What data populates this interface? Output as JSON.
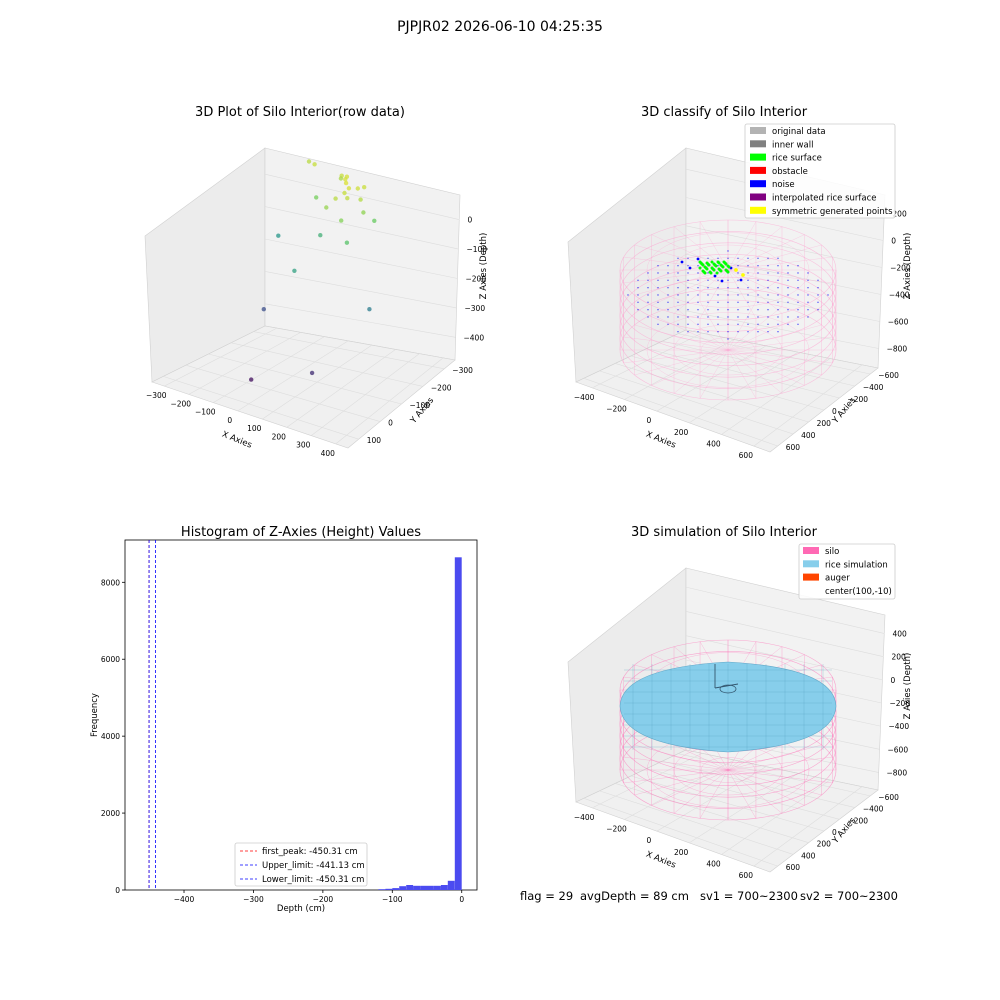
{
  "suptitle": "PJPJR02 2026-06-10 04:25:35",
  "colors": {
    "original_data": "#b3b3b3",
    "inner_wall": "#808080",
    "rice_surface": "#00ff00",
    "obstacle": "#ff0000",
    "noise": "#0000ff",
    "interpolated_rice_surface": "#800080",
    "symmetric_generated_points": "#ffff00",
    "silo": "#ff69b4",
    "rice_simulation": "#87ceeb",
    "auger": "#ff4500",
    "histogram": "#4b4bf0"
  },
  "chart_data": [
    {
      "type": "scatter",
      "projection": "3d",
      "title": "3D Plot of Silo Interior(row data)",
      "xlabel": "X Axies",
      "ylabel": "Y Axies",
      "zlabel": "Z Axies (Depth)",
      "xticks": [
        "−300",
        "−200",
        "−100",
        "0",
        "100",
        "200",
        "300",
        "400"
      ],
      "yticks": [
        "100",
        "0",
        "−100",
        "−200",
        "−300"
      ],
      "zticks": [
        "0",
        "−100",
        "−200",
        "−300",
        "−400"
      ],
      "xlim": [
        -340,
        470
      ],
      "ylim": [
        -370,
        160
      ],
      "zlim": [
        -440,
        20
      ],
      "colormap": "viridis by depth",
      "points": [
        {
          "x": 120,
          "y": 40,
          "z": -5
        },
        {
          "x": 140,
          "y": 30,
          "z": -10
        },
        {
          "x": 100,
          "y": 60,
          "z": -8
        },
        {
          "x": 160,
          "y": 50,
          "z": -15
        },
        {
          "x": 130,
          "y": 20,
          "z": -20
        },
        {
          "x": 150,
          "y": 10,
          "z": -25
        },
        {
          "x": 90,
          "y": 80,
          "z": -12
        },
        {
          "x": 170,
          "y": 70,
          "z": -18
        },
        {
          "x": 110,
          "y": 0,
          "z": -30
        },
        {
          "x": 180,
          "y": 40,
          "z": -35
        },
        {
          "x": 60,
          "y": 90,
          "z": -20
        },
        {
          "x": 40,
          "y": 110,
          "z": -40
        },
        {
          "x": 200,
          "y": 30,
          "z": -60
        },
        {
          "x": 150,
          "y": -20,
          "z": -70
        },
        {
          "x": 80,
          "y": -10,
          "z": -55
        },
        {
          "x": -60,
          "y": 100,
          "z": -20
        },
        {
          "x": -100,
          "y": 120,
          "z": -30
        },
        {
          "x": -20,
          "y": 60,
          "z": -80
        },
        {
          "x": 220,
          "y": 60,
          "z": -90
        },
        {
          "x": 190,
          "y": -40,
          "z": -110
        },
        {
          "x": 30,
          "y": 20,
          "z": -150
        },
        {
          "x": -160,
          "y": 40,
          "z": -200
        },
        {
          "x": 40,
          "y": -120,
          "z": -180
        },
        {
          "x": 300,
          "y": -60,
          "z": -250
        },
        {
          "x": -120,
          "y": -80,
          "z": -330
        },
        {
          "x": 180,
          "y": -200,
          "z": -380
        },
        {
          "x": -30,
          "y": -250,
          "z": -420
        }
      ]
    },
    {
      "type": "scatter",
      "projection": "3d",
      "title": "3D classify of Silo Interior",
      "xlabel": "X Axies",
      "ylabel": "Y Axies",
      "zlabel": "Z Axies (Depth)",
      "xticks": [
        "−400",
        "−200",
        "0",
        "200",
        "400",
        "600"
      ],
      "yticks": [
        "600",
        "400",
        "200",
        "0",
        "−200",
        "−400",
        "−600"
      ],
      "zticks": [
        "200",
        "0",
        "−200",
        "−400",
        "−600",
        "−800"
      ],
      "legend_position": "top-right",
      "legend": [
        "original data",
        "inner wall",
        "rice surface",
        "obstacle",
        "noise",
        "interpolated rice surface",
        "symmetric generated points"
      ],
      "silo_radius": 600,
      "silo_height": 900
    },
    {
      "type": "bar",
      "title": "Histogram of Z-Axies (Height) Values",
      "xlabel": "Depth (cm)",
      "ylabel": "Frequency",
      "xlim": [
        -485,
        22
      ],
      "ylim": [
        0,
        9100
      ],
      "xticks": [
        -400,
        -300,
        -200,
        -100,
        0
      ],
      "yticks": [
        0,
        2000,
        4000,
        6000,
        8000
      ],
      "bin_width": 10,
      "bins": [
        {
          "x": -110,
          "count": 20
        },
        {
          "x": -100,
          "count": 30
        },
        {
          "x": -90,
          "count": 50
        },
        {
          "x": -80,
          "count": 100
        },
        {
          "x": -70,
          "count": 130
        },
        {
          "x": -60,
          "count": 110
        },
        {
          "x": -50,
          "count": 110
        },
        {
          "x": -40,
          "count": 110
        },
        {
          "x": -30,
          "count": 110
        },
        {
          "x": -20,
          "count": 130
        },
        {
          "x": -10,
          "count": 240
        },
        {
          "x": 0,
          "count": 8650
        }
      ],
      "vlines": [
        {
          "label": "first_peak: -450.31 cm",
          "x": -450.31,
          "color": "#ff0000"
        },
        {
          "label": "Upper_limit: -441.13 cm",
          "x": -441.13,
          "color": "#0000ff"
        },
        {
          "label": "Lower_limit: -450.31 cm",
          "x": -450.31,
          "color": "#0000ff"
        }
      ],
      "legend_position": "lower-center"
    },
    {
      "type": "surface",
      "projection": "3d",
      "title": "3D simulation of Silo Interior",
      "xlabel": "X Axies",
      "ylabel": "Y Axies",
      "zlabel": "Z Axies (Depth)",
      "xticks": [
        "−400",
        "−200",
        "0",
        "200",
        "400",
        "600"
      ],
      "yticks": [
        "600",
        "400",
        "200",
        "0",
        "−200",
        "−400",
        "−600"
      ],
      "zticks": [
        "400",
        "200",
        "0",
        "−200",
        "−400",
        "−600",
        "−800"
      ],
      "legend_position": "top-right",
      "legend": [
        "silo",
        "rice simulation",
        "auger",
        "center(100,-10)"
      ]
    }
  ],
  "info_line": {
    "flag": "flag = 29",
    "avg_depth": "avgDepth = 89 cm",
    "sv1": "sv1 = 700~2300",
    "sv2": "sv2 = 700~2300"
  }
}
